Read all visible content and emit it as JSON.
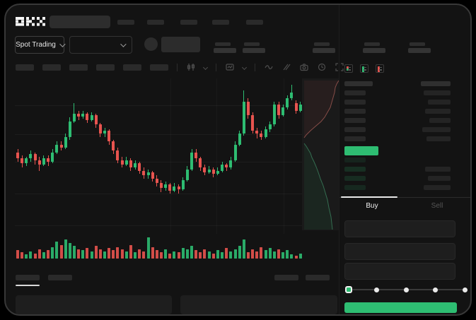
{
  "header": {
    "logo": "OKX",
    "nav_placeholder_count": 5
  },
  "trading_bar": {
    "pair_selector_label": "Spot Trading"
  },
  "order_book": {
    "view_modes": [
      "book-both-icon",
      "book-bids-icon",
      "book-asks-icon"
    ],
    "ask_rows": [
      {
        "price_w": 30,
        "amount_w": 38
      },
      {
        "price_w": 30,
        "amount_w": 32
      },
      {
        "price_w": 30,
        "amount_w": 36
      },
      {
        "price_w": 30,
        "amount_w": 30
      },
      {
        "price_w": 30,
        "amount_w": 40
      },
      {
        "price_w": 30,
        "amount_w": 34
      }
    ],
    "bid_rows": [
      {
        "price_w": 30,
        "amount_w": 0,
        "alpha": 0.1
      },
      {
        "price_w": 30,
        "amount_w": 36,
        "alpha": 0.17
      },
      {
        "price_w": 30,
        "amount_w": 32,
        "alpha": 0.15
      },
      {
        "price_w": 30,
        "amount_w": 38,
        "alpha": 0.13
      }
    ]
  },
  "order_form": {
    "buy_tab": "Buy",
    "sell_tab": "Sell",
    "field_count": 3,
    "slider": {
      "stops": 5,
      "value_index": 0
    }
  },
  "colors": {
    "green": "#2ebd72",
    "red": "#e8544f",
    "green_dim": "rgba(46,189,114,0.9)",
    "red_dim": "rgba(232,84,79,0.9)"
  },
  "chart_data": {
    "type": "candlestick",
    "title": "",
    "xlabel": "",
    "ylabel": "",
    "price_scale": [
      0,
      100
    ],
    "grid": true,
    "candles": [
      [
        52,
        48,
        54,
        46
      ],
      [
        48,
        45,
        50,
        42
      ],
      [
        45,
        48,
        49,
        43
      ],
      [
        48,
        51,
        53,
        46
      ],
      [
        51,
        47,
        52,
        44
      ],
      [
        47,
        44,
        49,
        40
      ],
      [
        44,
        48,
        50,
        43
      ],
      [
        48,
        46,
        50,
        43
      ],
      [
        46,
        52,
        54,
        45
      ],
      [
        52,
        57,
        59,
        51
      ],
      [
        57,
        55,
        59,
        53
      ],
      [
        55,
        62,
        64,
        54
      ],
      [
        62,
        72,
        75,
        60
      ],
      [
        72,
        77,
        84,
        71
      ],
      [
        77,
        75,
        79,
        73
      ],
      [
        75,
        77,
        79,
        74
      ],
      [
        77,
        73,
        78,
        71
      ],
      [
        73,
        76,
        78,
        72
      ],
      [
        76,
        70,
        77,
        68
      ],
      [
        70,
        64,
        71,
        62
      ],
      [
        64,
        66,
        68,
        62
      ],
      [
        66,
        59,
        67,
        57
      ],
      [
        59,
        53,
        60,
        51
      ],
      [
        53,
        47,
        55,
        45
      ],
      [
        47,
        44,
        49,
        42
      ],
      [
        44,
        47,
        49,
        43
      ],
      [
        47,
        42,
        48,
        40
      ],
      [
        42,
        45,
        47,
        41
      ],
      [
        45,
        40,
        46,
        38
      ],
      [
        40,
        37,
        42,
        35
      ],
      [
        37,
        39,
        41,
        35
      ],
      [
        39,
        35,
        40,
        33
      ],
      [
        35,
        32,
        37,
        30
      ],
      [
        32,
        29,
        34,
        26
      ],
      [
        29,
        31,
        33,
        27
      ],
      [
        31,
        27,
        32,
        25
      ],
      [
        27,
        30,
        32,
        26
      ],
      [
        30,
        28,
        31,
        25
      ],
      [
        28,
        34,
        36,
        27
      ],
      [
        34,
        41,
        43,
        33
      ],
      [
        41,
        52,
        54,
        40
      ],
      [
        52,
        48,
        54,
        46
      ],
      [
        48,
        42,
        49,
        40
      ],
      [
        42,
        39,
        44,
        37
      ],
      [
        39,
        41,
        43,
        38
      ],
      [
        41,
        38,
        42,
        36
      ],
      [
        38,
        40,
        42,
        37
      ],
      [
        40,
        44,
        46,
        39
      ],
      [
        44,
        42,
        45,
        40
      ],
      [
        42,
        47,
        49,
        41
      ],
      [
        47,
        57,
        59,
        46
      ],
      [
        57,
        64,
        66,
        56
      ],
      [
        64,
        85,
        92,
        63
      ],
      [
        85,
        76,
        87,
        74
      ],
      [
        76,
        66,
        78,
        64
      ],
      [
        66,
        64,
        68,
        61
      ],
      [
        64,
        62,
        66,
        60
      ],
      [
        62,
        67,
        69,
        61
      ],
      [
        67,
        70,
        72,
        65
      ],
      [
        70,
        83,
        85,
        69
      ],
      [
        83,
        76,
        85,
        74
      ],
      [
        76,
        81,
        83,
        75
      ],
      [
        81,
        87,
        89,
        80
      ],
      [
        87,
        91,
        96,
        86
      ],
      [
        84,
        79,
        86,
        77
      ],
      [
        79,
        83,
        85,
        78
      ]
    ],
    "volume": [
      8,
      6,
      4,
      7,
      5,
      9,
      6,
      8,
      11,
      16,
      13,
      18,
      15,
      12,
      9,
      8,
      10,
      7,
      12,
      9,
      7,
      10,
      8,
      11,
      9,
      7,
      13,
      6,
      9,
      7,
      20,
      11,
      8,
      6,
      9,
      5,
      7,
      6,
      10,
      9,
      12,
      8,
      6,
      9,
      7,
      5,
      8,
      6,
      10,
      7,
      9,
      12,
      18,
      6,
      9,
      7,
      11,
      8,
      10,
      7,
      9,
      6,
      8,
      4,
      3,
      5
    ],
    "grid_h_offsets": [
      38,
      79,
      118,
      163,
      208
    ],
    "grid_v_offsets": [
      220,
      285,
      380
    ]
  },
  "depth_chart": {
    "type": "area",
    "asks_outline": [
      [
        52,
        3
      ],
      [
        49,
        8
      ],
      [
        47,
        13
      ],
      [
        46,
        20
      ],
      [
        44,
        27
      ],
      [
        42,
        34
      ],
      [
        40,
        41
      ],
      [
        36,
        48
      ],
      [
        32,
        55
      ],
      [
        27,
        61
      ],
      [
        20,
        67
      ],
      [
        12,
        74
      ],
      [
        6,
        80
      ],
      [
        3,
        84
      ]
    ],
    "bids_outline": [
      [
        3,
        92
      ],
      [
        6,
        96
      ],
      [
        9,
        101
      ],
      [
        12,
        106
      ],
      [
        14,
        112
      ],
      [
        17,
        118
      ],
      [
        20,
        125
      ],
      [
        23,
        133
      ],
      [
        26,
        142
      ],
      [
        30,
        152
      ],
      [
        33,
        162
      ],
      [
        36,
        172
      ],
      [
        38,
        183
      ],
      [
        41,
        196
      ],
      [
        43,
        214
      ]
    ]
  }
}
